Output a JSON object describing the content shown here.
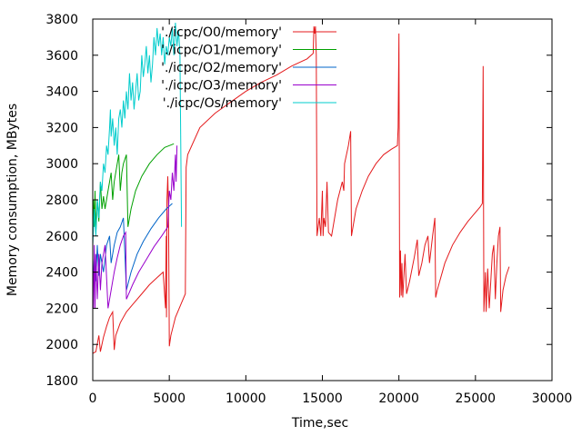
{
  "chart_data": {
    "type": "line",
    "title": "",
    "xlabel": "Time,sec",
    "ylabel": "Memory consumption, MBytes",
    "xlim": [
      0,
      30000
    ],
    "ylim": [
      1800,
      3800
    ],
    "x_ticks": [
      0,
      5000,
      10000,
      15000,
      20000,
      25000,
      30000
    ],
    "x_tick_labels": [
      "0",
      "5000",
      "10000",
      "15000",
      "20000",
      "25000",
      "30000"
    ],
    "y_ticks": [
      1800,
      2000,
      2200,
      2400,
      2600,
      2800,
      3000,
      3200,
      3400,
      3600,
      3800
    ],
    "y_tick_labels": [
      "1800",
      "2000",
      "2200",
      "2400",
      "2600",
      "2800",
      "3000",
      "3200",
      "3400",
      "3600",
      "3800"
    ],
    "grid": false,
    "legend_position": "top-left",
    "series": [
      {
        "name": "'./icpc/O0/memory'",
        "color": "#e41a1c",
        "points": [
          [
            0,
            1950
          ],
          [
            200,
            1960
          ],
          [
            400,
            2050
          ],
          [
            500,
            1960
          ],
          [
            700,
            2040
          ],
          [
            900,
            2100
          ],
          [
            1100,
            2150
          ],
          [
            1300,
            2180
          ],
          [
            1400,
            1970
          ],
          [
            1500,
            2050
          ],
          [
            1800,
            2120
          ],
          [
            2200,
            2180
          ],
          [
            2700,
            2230
          ],
          [
            3200,
            2280
          ],
          [
            3700,
            2330
          ],
          [
            4200,
            2370
          ],
          [
            4600,
            2400
          ],
          [
            4750,
            2200
          ],
          [
            4800,
            2600
          ],
          [
            4820,
            2150
          ],
          [
            4850,
            2800
          ],
          [
            4900,
            2930
          ],
          [
            4950,
            2750
          ],
          [
            5000,
            1990
          ],
          [
            5100,
            2050
          ],
          [
            5400,
            2150
          ],
          [
            5800,
            2230
          ],
          [
            6050,
            2280
          ],
          [
            6100,
            2980
          ],
          [
            6200,
            3050
          ],
          [
            7000,
            3200
          ],
          [
            8000,
            3280
          ],
          [
            9000,
            3340
          ],
          [
            10000,
            3400
          ],
          [
            11000,
            3450
          ],
          [
            12000,
            3490
          ],
          [
            13000,
            3540
          ],
          [
            14000,
            3580
          ],
          [
            14400,
            3610
          ],
          [
            14450,
            3760
          ],
          [
            14500,
            3720
          ],
          [
            14550,
            3760
          ],
          [
            14600,
            3600
          ],
          [
            14650,
            2600
          ],
          [
            14800,
            2700
          ],
          [
            14900,
            2600
          ],
          [
            15000,
            2850
          ],
          [
            15050,
            2600
          ],
          [
            15100,
            2700
          ],
          [
            15200,
            2650
          ],
          [
            15300,
            2900
          ],
          [
            15400,
            2620
          ],
          [
            15600,
            2600
          ],
          [
            15700,
            2650
          ],
          [
            16000,
            2800
          ],
          [
            16300,
            2900
          ],
          [
            16400,
            2850
          ],
          [
            16450,
            3000
          ],
          [
            16700,
            3100
          ],
          [
            16850,
            3180
          ],
          [
            16900,
            2600
          ],
          [
            17200,
            2750
          ],
          [
            17600,
            2850
          ],
          [
            18000,
            2930
          ],
          [
            18500,
            3000
          ],
          [
            19000,
            3050
          ],
          [
            19500,
            3080
          ],
          [
            19900,
            3100
          ],
          [
            19950,
            3200
          ],
          [
            20000,
            3720
          ],
          [
            20050,
            2260
          ],
          [
            20100,
            2520
          ],
          [
            20150,
            2270
          ],
          [
            20200,
            2450
          ],
          [
            20250,
            2260
          ],
          [
            20400,
            2500
          ],
          [
            20500,
            2280
          ],
          [
            20700,
            2350
          ],
          [
            21000,
            2480
          ],
          [
            21200,
            2580
          ],
          [
            21300,
            2380
          ],
          [
            21500,
            2450
          ],
          [
            21700,
            2550
          ],
          [
            21900,
            2600
          ],
          [
            22000,
            2450
          ],
          [
            22200,
            2600
          ],
          [
            22350,
            2700
          ],
          [
            22400,
            2260
          ],
          [
            22500,
            2300
          ],
          [
            23000,
            2450
          ],
          [
            23500,
            2550
          ],
          [
            24000,
            2620
          ],
          [
            24500,
            2680
          ],
          [
            25000,
            2730
          ],
          [
            25300,
            2760
          ],
          [
            25450,
            2780
          ],
          [
            25500,
            3540
          ],
          [
            25550,
            2180
          ],
          [
            25650,
            2400
          ],
          [
            25700,
            2180
          ],
          [
            25800,
            2420
          ],
          [
            25900,
            2200
          ],
          [
            26000,
            2350
          ],
          [
            26100,
            2500
          ],
          [
            26200,
            2550
          ],
          [
            26300,
            2250
          ],
          [
            26400,
            2450
          ],
          [
            26500,
            2600
          ],
          [
            26600,
            2650
          ],
          [
            26650,
            2180
          ],
          [
            26800,
            2300
          ],
          [
            27000,
            2380
          ],
          [
            27200,
            2430
          ]
        ]
      },
      {
        "name": "'./icpc/O1/memory'",
        "color": "#00a000",
        "points": [
          [
            0,
            2600
          ],
          [
            50,
            2800
          ],
          [
            100,
            2650
          ],
          [
            150,
            2850
          ],
          [
            200,
            2620
          ],
          [
            300,
            2800
          ],
          [
            400,
            2680
          ],
          [
            500,
            2900
          ],
          [
            600,
            2750
          ],
          [
            700,
            2820
          ],
          [
            800,
            2750
          ],
          [
            1000,
            2850
          ],
          [
            1200,
            2950
          ],
          [
            1300,
            2800
          ],
          [
            1400,
            2900
          ],
          [
            1600,
            3000
          ],
          [
            1700,
            3050
          ],
          [
            1800,
            2850
          ],
          [
            1900,
            2950
          ],
          [
            2000,
            3000
          ],
          [
            2200,
            3050
          ],
          [
            2300,
            2650
          ],
          [
            2500,
            2750
          ],
          [
            2800,
            2850
          ],
          [
            3200,
            2930
          ],
          [
            3700,
            3000
          ],
          [
            4200,
            3050
          ],
          [
            4700,
            3090
          ],
          [
            5000,
            3100
          ],
          [
            5300,
            3110
          ]
        ]
      },
      {
        "name": "'./icpc/O2/memory'",
        "color": "#0064c8",
        "points": [
          [
            0,
            2300
          ],
          [
            100,
            2500
          ],
          [
            200,
            2350
          ],
          [
            300,
            2550
          ],
          [
            400,
            2380
          ],
          [
            500,
            2500
          ],
          [
            700,
            2400
          ],
          [
            900,
            2550
          ],
          [
            1100,
            2600
          ],
          [
            1200,
            2450
          ],
          [
            1400,
            2550
          ],
          [
            1600,
            2620
          ],
          [
            1800,
            2650
          ],
          [
            2000,
            2700
          ],
          [
            2200,
            2300
          ],
          [
            2500,
            2400
          ],
          [
            2900,
            2500
          ],
          [
            3300,
            2570
          ],
          [
            3800,
            2640
          ],
          [
            4300,
            2700
          ],
          [
            4800,
            2750
          ],
          [
            5200,
            2780
          ]
        ]
      },
      {
        "name": "'./icpc/O3/memory'",
        "color": "#9900cc",
        "points": [
          [
            0,
            2450
          ],
          [
            50,
            2200
          ],
          [
            100,
            2550
          ],
          [
            150,
            2200
          ],
          [
            200,
            2500
          ],
          [
            300,
            2250
          ],
          [
            400,
            2500
          ],
          [
            500,
            2300
          ],
          [
            600,
            2450
          ],
          [
            800,
            2550
          ],
          [
            1000,
            2200
          ],
          [
            1200,
            2300
          ],
          [
            1400,
            2400
          ],
          [
            1600,
            2480
          ],
          [
            1800,
            2550
          ],
          [
            2000,
            2600
          ],
          [
            2150,
            2620
          ],
          [
            2200,
            2250
          ],
          [
            2600,
            2330
          ],
          [
            3000,
            2400
          ],
          [
            3500,
            2470
          ],
          [
            4000,
            2540
          ],
          [
            4500,
            2600
          ],
          [
            4900,
            2650
          ],
          [
            5000,
            2850
          ],
          [
            5100,
            2800
          ],
          [
            5200,
            2950
          ],
          [
            5300,
            2850
          ],
          [
            5400,
            3050
          ],
          [
            5450,
            2900
          ],
          [
            5500,
            3100
          ]
        ]
      },
      {
        "name": "'./icpc/Os/memory'",
        "color": "#00cccc",
        "points": [
          [
            0,
            2550
          ],
          [
            100,
            2750
          ],
          [
            200,
            2600
          ],
          [
            300,
            2800
          ],
          [
            400,
            2700
          ],
          [
            500,
            2900
          ],
          [
            600,
            2850
          ],
          [
            700,
            3000
          ],
          [
            800,
            2950
          ],
          [
            900,
            3100
          ],
          [
            1000,
            3050
          ],
          [
            1100,
            3200
          ],
          [
            1150,
            3300
          ],
          [
            1200,
            3150
          ],
          [
            1300,
            3250
          ],
          [
            1400,
            3100
          ],
          [
            1500,
            3200
          ],
          [
            1600,
            3050
          ],
          [
            1700,
            3250
          ],
          [
            1800,
            3300
          ],
          [
            1900,
            3200
          ],
          [
            2000,
            3350
          ],
          [
            2100,
            3250
          ],
          [
            2200,
            3400
          ],
          [
            2300,
            3300
          ],
          [
            2400,
            3500
          ],
          [
            2500,
            3350
          ],
          [
            2600,
            3450
          ],
          [
            2700,
            3300
          ],
          [
            2800,
            3400
          ],
          [
            2900,
            3500
          ],
          [
            3000,
            3350
          ],
          [
            3100,
            3400
          ],
          [
            3200,
            3600
          ],
          [
            3300,
            3480
          ],
          [
            3400,
            3550
          ],
          [
            3500,
            3650
          ],
          [
            3600,
            3500
          ],
          [
            3700,
            3600
          ],
          [
            3800,
            3450
          ],
          [
            3900,
            3550
          ],
          [
            4000,
            3700
          ],
          [
            4100,
            3600
          ],
          [
            4200,
            3750
          ],
          [
            4300,
            3650
          ],
          [
            4400,
            3720
          ],
          [
            4500,
            3600
          ],
          [
            4600,
            3700
          ],
          [
            4700,
            3550
          ],
          [
            4800,
            3650
          ],
          [
            4900,
            3600
          ],
          [
            5000,
            3700
          ],
          [
            5100,
            3650
          ],
          [
            5200,
            3750
          ],
          [
            5300,
            3600
          ],
          [
            5400,
            3780
          ],
          [
            5500,
            3650
          ],
          [
            5600,
            3740
          ],
          [
            5700,
            3600
          ],
          [
            5800,
            2650
          ]
        ]
      }
    ]
  }
}
